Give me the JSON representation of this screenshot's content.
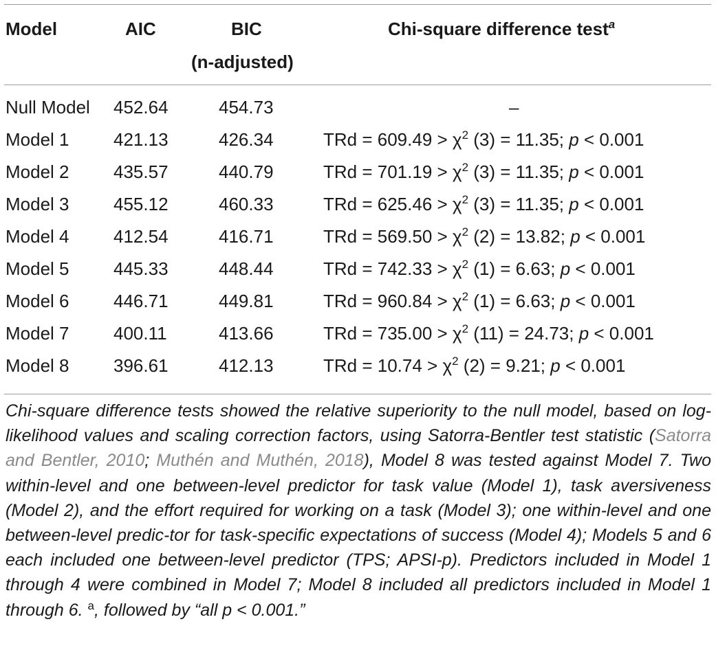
{
  "table": {
    "headers": {
      "model": "Model",
      "aic": "AIC",
      "bic_line1": "BIC",
      "bic_line2": "(n-adjusted)",
      "test": "Chi-square difference test",
      "test_sup": "a"
    },
    "rows": [
      {
        "model": "Null Model",
        "aic": "452.64",
        "bic": "454.73",
        "test": "–"
      },
      {
        "model": "Model 1",
        "aic": "421.13",
        "bic": "426.34",
        "trd": "TRd = 609.49 > χ",
        "chi_sup": "2",
        "df_stat": " (3) = 11.35; ",
        "p_label": "p",
        "p_val": " < 0.001"
      },
      {
        "model": "Model 2",
        "aic": "435.57",
        "bic": "440.79",
        "trd": "TRd = 701.19 > χ",
        "chi_sup": "2",
        "df_stat": " (3) = 11.35; ",
        "p_label": "p",
        "p_val": " < 0.001"
      },
      {
        "model": "Model 3",
        "aic": "455.12",
        "bic": "460.33",
        "trd": "TRd = 625.46 > χ",
        "chi_sup": "2",
        "df_stat": " (3) = 11.35; ",
        "p_label": "p",
        "p_val": " < 0.001"
      },
      {
        "model": "Model 4",
        "aic": "412.54",
        "bic": "416.71",
        "trd": "TRd = 569.50 > χ",
        "chi_sup": "2",
        "df_stat": " (2) = 13.82; ",
        "p_label": "p",
        "p_val": " < 0.001"
      },
      {
        "model": "Model 5",
        "aic": "445.33",
        "bic": "448.44",
        "trd": "TRd = 742.33 > χ",
        "chi_sup": "2",
        "df_stat": " (1) = 6.63; ",
        "p_label": "p",
        "p_val": " < 0.001"
      },
      {
        "model": "Model 6",
        "aic": "446.71",
        "bic": "449.81",
        "trd": "TRd = 960.84 > χ",
        "chi_sup": "2",
        "df_stat": " (1) = 6.63; ",
        "p_label": "p",
        "p_val": " < 0.001"
      },
      {
        "model": "Model 7",
        "aic": "400.11",
        "bic": "413.66",
        "trd": "TRd = 735.00 > χ",
        "chi_sup": "2",
        "df_stat": " (11) = 24.73; ",
        "p_label": "p",
        "p_val": " < 0.001"
      },
      {
        "model": "Model 8",
        "aic": "396.61",
        "bic": "412.13",
        "trd": "TRd = 10.74 > χ",
        "chi_sup": "2",
        "df_stat": " (2) = 9.21; ",
        "p_label": "p",
        "p_val": " < 0.001"
      }
    ]
  },
  "note": {
    "part1": "Chi-square difference tests showed the relative superiority to the null model, based on log-likelihood values and scaling correction factors, using Satorra-Bentler test statistic (",
    "cite1": "Satorra and Bentler, 2010",
    "sep": "; ",
    "cite2": "Muthén and Muthén, 2018",
    "part2": "), Model 8 was tested against Model 7. Two within-level and one between-level predictor for task value (Model 1), task aversiveness (Model 2), and the effort required for working on a task (Model 3); one within-level and one between-level predic-tor for task-specific expectations of success (Model 4); Models 5 and 6 each included one between-level predictor (TPS; APSI-p). Predictors included in Model 1 through 4 were combined in Model 7; Model 8 included all predictors included in Model 1 through 6. ",
    "sup": "a",
    "part3": ", followed by “all p < 0.001.”"
  }
}
